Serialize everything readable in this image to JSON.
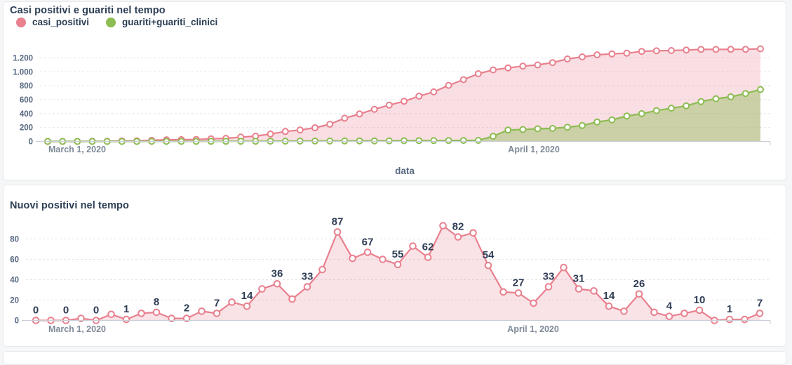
{
  "page": {
    "background": "#f5f6f7",
    "card_background": "#ffffff",
    "card_border": "#e7e8ea",
    "title_color": "#2c3e55",
    "tick_color": "#566780",
    "date_tick_color": "#7f8a98",
    "data_label_color": "#2e3c54"
  },
  "chart_data": [
    {
      "type": "line",
      "title": "Casi positivi e guariti nel tempo",
      "xlabel": "data",
      "ylabel": "",
      "grid": "horizontal-dashed",
      "legend_position": "top-left",
      "ylim": [
        0,
        1350
      ],
      "x": [
        "2020-03-01",
        "2020-03-02",
        "2020-03-03",
        "2020-03-04",
        "2020-03-05",
        "2020-03-06",
        "2020-03-07",
        "2020-03-08",
        "2020-03-09",
        "2020-03-10",
        "2020-03-11",
        "2020-03-12",
        "2020-03-13",
        "2020-03-14",
        "2020-03-15",
        "2020-03-16",
        "2020-03-17",
        "2020-03-18",
        "2020-03-19",
        "2020-03-20",
        "2020-03-21",
        "2020-03-22",
        "2020-03-23",
        "2020-03-24",
        "2020-03-25",
        "2020-03-26",
        "2020-03-27",
        "2020-03-28",
        "2020-03-29",
        "2020-03-30",
        "2020-03-31",
        "2020-04-01",
        "2020-04-02",
        "2020-04-03",
        "2020-04-04",
        "2020-04-05",
        "2020-04-06",
        "2020-04-07",
        "2020-04-08",
        "2020-04-09",
        "2020-04-10",
        "2020-04-11",
        "2020-04-12",
        "2020-04-13",
        "2020-04-14",
        "2020-04-15",
        "2020-04-16",
        "2020-04-17",
        "2020-04-18"
      ],
      "x_tick_labels": [
        "March 1, 2020",
        "April 1, 2020"
      ],
      "x_tick_indices": [
        0,
        31
      ],
      "y_ticks": [
        {
          "value": 0,
          "label": "0"
        },
        {
          "value": 200,
          "label": "200"
        },
        {
          "value": 400,
          "label": "400"
        },
        {
          "value": 600,
          "label": "600"
        },
        {
          "value": 800,
          "label": "800"
        },
        {
          "value": 1000,
          "label": "1.000"
        },
        {
          "value": 1200,
          "label": "1.200"
        }
      ],
      "series": [
        {
          "name": "casi_positivi",
          "color": "#e8808e",
          "fill": "rgba(232,128,142,0.25)",
          "values": [
            0,
            0,
            0,
            2,
            2,
            8,
            9,
            16,
            24,
            26,
            28,
            37,
            44,
            62,
            76,
            107,
            143,
            164,
            197,
            247,
            334,
            395,
            462,
            522,
            577,
            650,
            712,
            805,
            887,
            973,
            1027,
            1055,
            1082,
            1099,
            1132,
            1184,
            1215,
            1244,
            1258,
            1267,
            1293,
            1301,
            1305,
            1312,
            1322,
            1322,
            1323,
            1324,
            1331
          ]
        },
        {
          "name": "guariti+guariti_clinici",
          "color": "#8cbc52",
          "fill": "rgba(140,188,82,0.42)",
          "values": [
            0,
            0,
            0,
            0,
            0,
            0,
            0,
            1,
            1,
            1,
            1,
            2,
            2,
            3,
            3,
            4,
            4,
            5,
            6,
            6,
            7,
            8,
            8,
            9,
            10,
            11,
            12,
            13,
            14,
            15,
            75,
            164,
            171,
            181,
            187,
            205,
            229,
            280,
            310,
            365,
            399,
            443,
            478,
            511,
            573,
            614,
            641,
            689,
            746
          ]
        }
      ]
    },
    {
      "type": "line",
      "title": "Nuovi positivi nel tempo",
      "xlabel": "",
      "ylabel": "",
      "grid": "horizontal-dashed",
      "ylim": [
        0,
        100
      ],
      "label_every": 2,
      "shown_point_labels": [
        0,
        0,
        0,
        1,
        8,
        2,
        7,
        14,
        36,
        33,
        87,
        67,
        55,
        62,
        82,
        54,
        27,
        33,
        31,
        14,
        26,
        4,
        10,
        1,
        7
      ],
      "x": [
        "2020-03-01",
        "2020-03-02",
        "2020-03-03",
        "2020-03-04",
        "2020-03-05",
        "2020-03-06",
        "2020-03-07",
        "2020-03-08",
        "2020-03-09",
        "2020-03-10",
        "2020-03-11",
        "2020-03-12",
        "2020-03-13",
        "2020-03-14",
        "2020-03-15",
        "2020-03-16",
        "2020-03-17",
        "2020-03-18",
        "2020-03-19",
        "2020-03-20",
        "2020-03-21",
        "2020-03-22",
        "2020-03-23",
        "2020-03-24",
        "2020-03-25",
        "2020-03-26",
        "2020-03-27",
        "2020-03-28",
        "2020-03-29",
        "2020-03-30",
        "2020-03-31",
        "2020-04-01",
        "2020-04-02",
        "2020-04-03",
        "2020-04-04",
        "2020-04-05",
        "2020-04-06",
        "2020-04-07",
        "2020-04-08",
        "2020-04-09",
        "2020-04-10",
        "2020-04-11",
        "2020-04-12",
        "2020-04-13",
        "2020-04-14",
        "2020-04-15",
        "2020-04-16",
        "2020-04-17",
        "2020-04-18"
      ],
      "x_tick_labels": [
        "March 1, 2020",
        "April 1, 2020"
      ],
      "x_tick_indices": [
        0,
        31
      ],
      "y_ticks": [
        {
          "value": 0,
          "label": "0"
        },
        {
          "value": 20,
          "label": "20"
        },
        {
          "value": 40,
          "label": "40"
        },
        {
          "value": 60,
          "label": "60"
        },
        {
          "value": 80,
          "label": "80"
        }
      ],
      "series": [
        {
          "name": "nuovi_positivi",
          "color": "#e8808e",
          "fill": "rgba(232,128,142,0.22)",
          "values": [
            0,
            0,
            0,
            2,
            0,
            6,
            1,
            7,
            8,
            2,
            2,
            9,
            7,
            18,
            14,
            31,
            36,
            21,
            33,
            50,
            87,
            61,
            67,
            60,
            55,
            73,
            62,
            93,
            82,
            86,
            54,
            28,
            27,
            17,
            33,
            52,
            31,
            29,
            14,
            9,
            26,
            8,
            4,
            7,
            10,
            0,
            1,
            1,
            7
          ]
        }
      ]
    }
  ]
}
